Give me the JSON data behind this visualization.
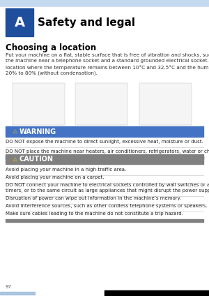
{
  "page_bg": "#ffffff",
  "header_light_blue": "#c5d9f1",
  "header_dark_blue": "#1f4e9c",
  "header_A_text": "A",
  "header_title": "Safety and legal",
  "section_title": "Choosing a location",
  "body_text": "Put your machine on a flat, stable surface that is free of vibration and shocks, such as a desk. Put\nthe machine near a telephone socket and a standard grounded electrical socket. Choose a\nlocation where the temperature remains between 10°C and 32.5°C and the humidity is between\n20% to 80% (without condensation).",
  "warning_bar_color": "#4472c4",
  "warning_bar_text": "  WARNING",
  "warning_line1": "DO NOT expose the machine to direct sunlight, excessive heat, moisture or dust.",
  "warning_line2": "DO NOT place the machine near heaters, air conditioners, refrigerators, water or chemicals.",
  "caution_bar_color": "#808080",
  "caution_bar_text": "  CAUTION",
  "caution_lines": [
    "Avoid placing your machine in a high-traffic area.",
    "Avoid placing your machine on a carpet.",
    "DO NOT connect your machine to electrical sockets controlled by wall switches or automatic\ntimers, or to the same circuit as large appliances that might disrupt the power supply.",
    "Disruption of power can wipe out information in the machine’s memory.",
    "Avoid interference sources, such as other cordless telephone systems or speakers.",
    "Make sure cables leading to the machine do not constitute a trip hazard."
  ],
  "page_number": "97",
  "footer_blue_bar_color": "#a8c4e0"
}
